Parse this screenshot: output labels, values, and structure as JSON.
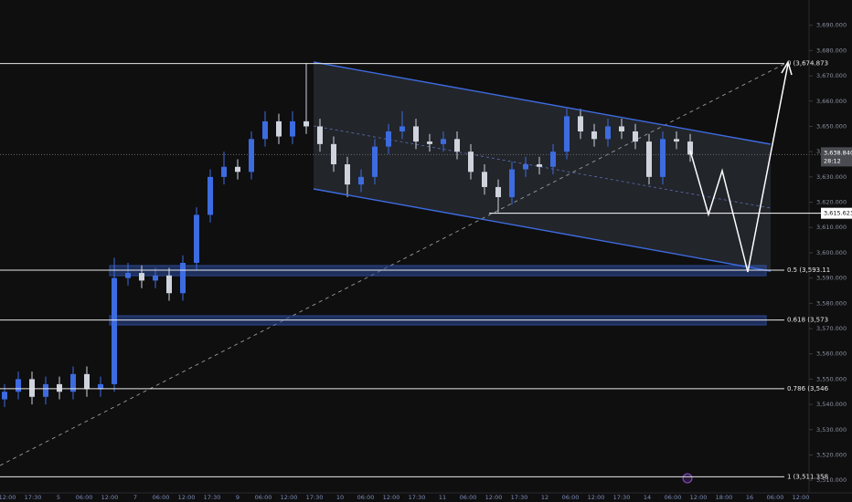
{
  "chart_data": {
    "type": "candlestick",
    "up_color": "#3d6be0",
    "down_color": "#cfd3dc",
    "ylim": [
      3505,
      3700
    ],
    "yticks": [
      {
        "value": 3510,
        "label": "3,510.000"
      },
      {
        "value": 3520,
        "label": "3,520.000"
      },
      {
        "value": 3530,
        "label": "3,530.000"
      },
      {
        "value": 3540,
        "label": "3,540.000"
      },
      {
        "value": 3550,
        "label": "3,550.000"
      },
      {
        "value": 3560,
        "label": "3,560.000"
      },
      {
        "value": 3570,
        "label": "3,570.000"
      },
      {
        "value": 3580,
        "label": "3,580.000"
      },
      {
        "value": 3590,
        "label": "3,590.000"
      },
      {
        "value": 3600,
        "label": "3,600.000"
      },
      {
        "value": 3610,
        "label": "3,610.000"
      },
      {
        "value": 3620,
        "label": "3,620.000"
      },
      {
        "value": 3630,
        "label": "3,630.000"
      },
      {
        "value": 3640,
        "label": "3,640.000"
      },
      {
        "value": 3650,
        "label": "3,650.000"
      },
      {
        "value": 3660,
        "label": "3,660.000"
      },
      {
        "value": 3670,
        "label": "3,670.000"
      },
      {
        "value": 3680,
        "label": "3,680.000"
      },
      {
        "value": 3690,
        "label": "3,690.000"
      }
    ],
    "xtick_labels": [
      "12:00",
      "17:30",
      "5",
      "06:00",
      "12:00",
      "7",
      "06:00",
      "12:00",
      "17:30",
      "9",
      "06:00",
      "12:00",
      "17:30",
      "10",
      "06:00",
      "12:00",
      "17:30",
      "11",
      "06:00",
      "12:00",
      "17:30",
      "12",
      "06:00",
      "12:00",
      "17:30",
      "14",
      "06:00",
      "12:00",
      "18:00",
      "16",
      "06:00",
      "12:00"
    ],
    "open": [
      3542,
      3545,
      3550,
      3543,
      3548,
      3545,
      3552,
      3546,
      3548,
      3590,
      3592,
      3589,
      3591,
      3584,
      3596,
      3615,
      3630,
      3634,
      3632,
      3645,
      3652,
      3646,
      3652,
      3650,
      3643,
      3635,
      3627,
      3630,
      3642,
      3648,
      3650,
      3644,
      3643,
      3645,
      3640,
      3632,
      3626,
      3622,
      3633,
      3635,
      3634,
      3640,
      3654,
      3648,
      3645,
      3650,
      3648,
      3644,
      3630,
      3645,
      3644
    ],
    "high": [
      3548,
      3553,
      3553,
      3551,
      3551,
      3555,
      3555,
      3551,
      3598,
      3596,
      3595,
      3594,
      3594,
      3599,
      3618,
      3633,
      3640,
      3637,
      3648,
      3656,
      3655,
      3656,
      3675,
      3653,
      3646,
      3638,
      3633,
      3645,
      3651,
      3656,
      3653,
      3647,
      3648,
      3648,
      3643,
      3635,
      3629,
      3636,
      3638,
      3638,
      3643,
      3657,
      3657,
      3651,
      3653,
      3653,
      3651,
      3647,
      3648,
      3648,
      3647
    ],
    "low": [
      3539,
      3542,
      3540,
      3540,
      3542,
      3542,
      3543,
      3543,
      3545,
      3587,
      3586,
      3586,
      3581,
      3581,
      3593,
      3612,
      3627,
      3629,
      3629,
      3642,
      3643,
      3643,
      3647,
      3640,
      3632,
      3622,
      3624,
      3627,
      3639,
      3645,
      3641,
      3640,
      3640,
      3637,
      3629,
      3623,
      3616,
      3619,
      3630,
      3631,
      3631,
      3637,
      3645,
      3642,
      3642,
      3645,
      3641,
      3627,
      3627,
      3641,
      3636
    ],
    "close": [
      3545,
      3550,
      3543,
      3548,
      3545,
      3552,
      3546,
      3548,
      3590,
      3592,
      3589,
      3591,
      3584,
      3596,
      3615,
      3630,
      3634,
      3632,
      3645,
      3652,
      3646,
      3652,
      3650,
      3643,
      3635,
      3627,
      3630,
      3642,
      3648,
      3650,
      3644,
      3643,
      3645,
      3640,
      3632,
      3626,
      3622,
      3633,
      3635,
      3634,
      3640,
      3654,
      3648,
      3645,
      3650,
      3648,
      3644,
      3630,
      3645,
      3644,
      3638.84
    ],
    "fib_levels": [
      {
        "price": 3674.873,
        "label": "0 (3,674.873"
      },
      {
        "price": 3593.11,
        "label": "0.5 (3,593.11"
      },
      {
        "price": 3573.4,
        "label": "0.618 (3,573"
      },
      {
        "price": 3546.2,
        "label": "0.786 (3,546"
      },
      {
        "price": 3511.358,
        "label": "1 (3,511.358"
      }
    ],
    "price_line": {
      "value": 3638.84,
      "label": "3,638.840",
      "countdown": "28:12"
    },
    "target_line": {
      "value": 3615.623,
      "label": "3,615.623"
    }
  }
}
